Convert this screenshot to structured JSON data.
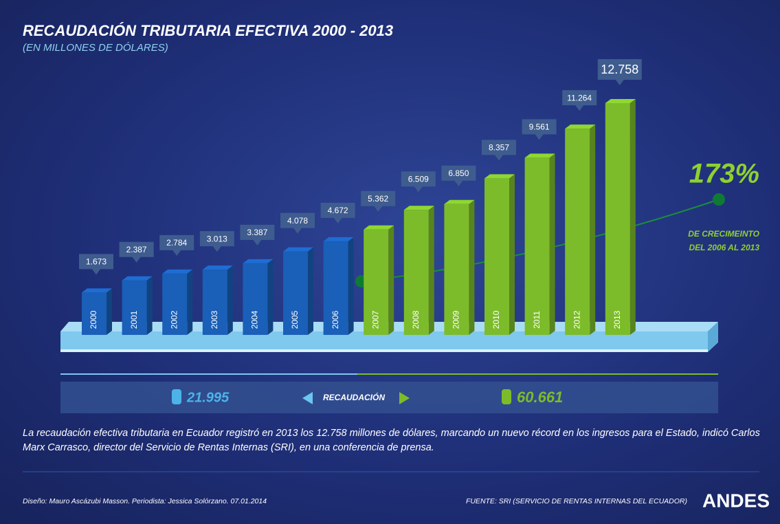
{
  "chart_data": {
    "type": "bar",
    "title": "RECAUDACIÓN TRIBUTARIA EFECTIVA 2000 - 2013",
    "subtitle": "(EN MILLONES DE DÓLARES)",
    "categories": [
      "2000",
      "2001",
      "2002",
      "2003",
      "2004",
      "2005",
      "2006",
      "2007",
      "2008",
      "2009",
      "2010",
      "2011",
      "2012",
      "2013"
    ],
    "values": [
      1673,
      2387,
      2784,
      3013,
      3387,
      4078,
      4672,
      5362,
      6509,
      6850,
      8357,
      9561,
      11264,
      12758
    ],
    "value_labels": [
      "1.673",
      "2.387",
      "2.784",
      "3.013",
      "3.387",
      "4.078",
      "4.672",
      "5.362",
      "6.509",
      "6.850",
      "8.357",
      "9.561",
      "11.264",
      "12.758"
    ],
    "colors": [
      "#1a5fb8",
      "#1a5fb8",
      "#1a5fb8",
      "#1a5fb8",
      "#1a5fb8",
      "#1a5fb8",
      "#1a5fb8",
      "#7cbc2a",
      "#7cbc2a",
      "#7cbc2a",
      "#7cbc2a",
      "#7cbc2a",
      "#7cbc2a",
      "#7cbc2a"
    ],
    "annotations": {
      "growth": "173%",
      "growth_text": [
        "DE CRECIMEINTO",
        "DEL 2006 AL 2013"
      ]
    },
    "summary": {
      "left": "21.995",
      "label": "RECAUDACIÓN",
      "right": "60.661"
    }
  },
  "description": "La recaudación efectiva tributaria en Ecuador registró en 2013 los 12.758 millones de dólares, marcando un nuevo récord en los ingresos para el Estado, indicó Carlos Marx Carrasco, director del Servicio de Rentas Internas (SRI), en una conferencia de prensa.",
  "credits": "Diseño: Mauro Ascázubi Masson. Periodista: Jessica Solórzano. 07.01.2014",
  "source": "FUENTE: SRI (SERVICIO DE RENTAS INTERNAS DEL ECUADOR)",
  "brand": "ANDES"
}
